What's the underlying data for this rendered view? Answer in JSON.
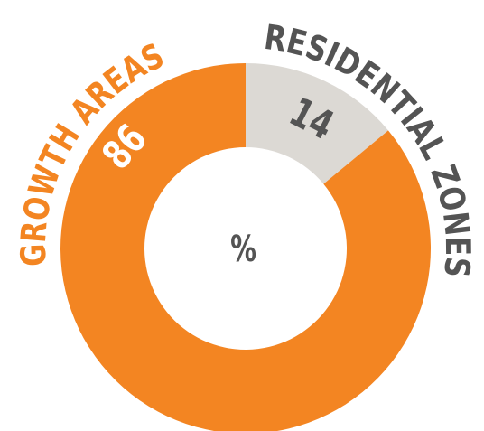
{
  "chart_data": {
    "type": "donut",
    "categories": [
      "RESIDENTIAL ZONES",
      "GROWTH AREAS"
    ],
    "values": [
      14,
      86
    ],
    "colors": [
      "#dcd9d4",
      "#f38522"
    ],
    "label_colors": [
      "#545454",
      "#f38522"
    ],
    "value_label_colors": [
      "#545454",
      "#ffffff"
    ],
    "center_label": "%"
  }
}
